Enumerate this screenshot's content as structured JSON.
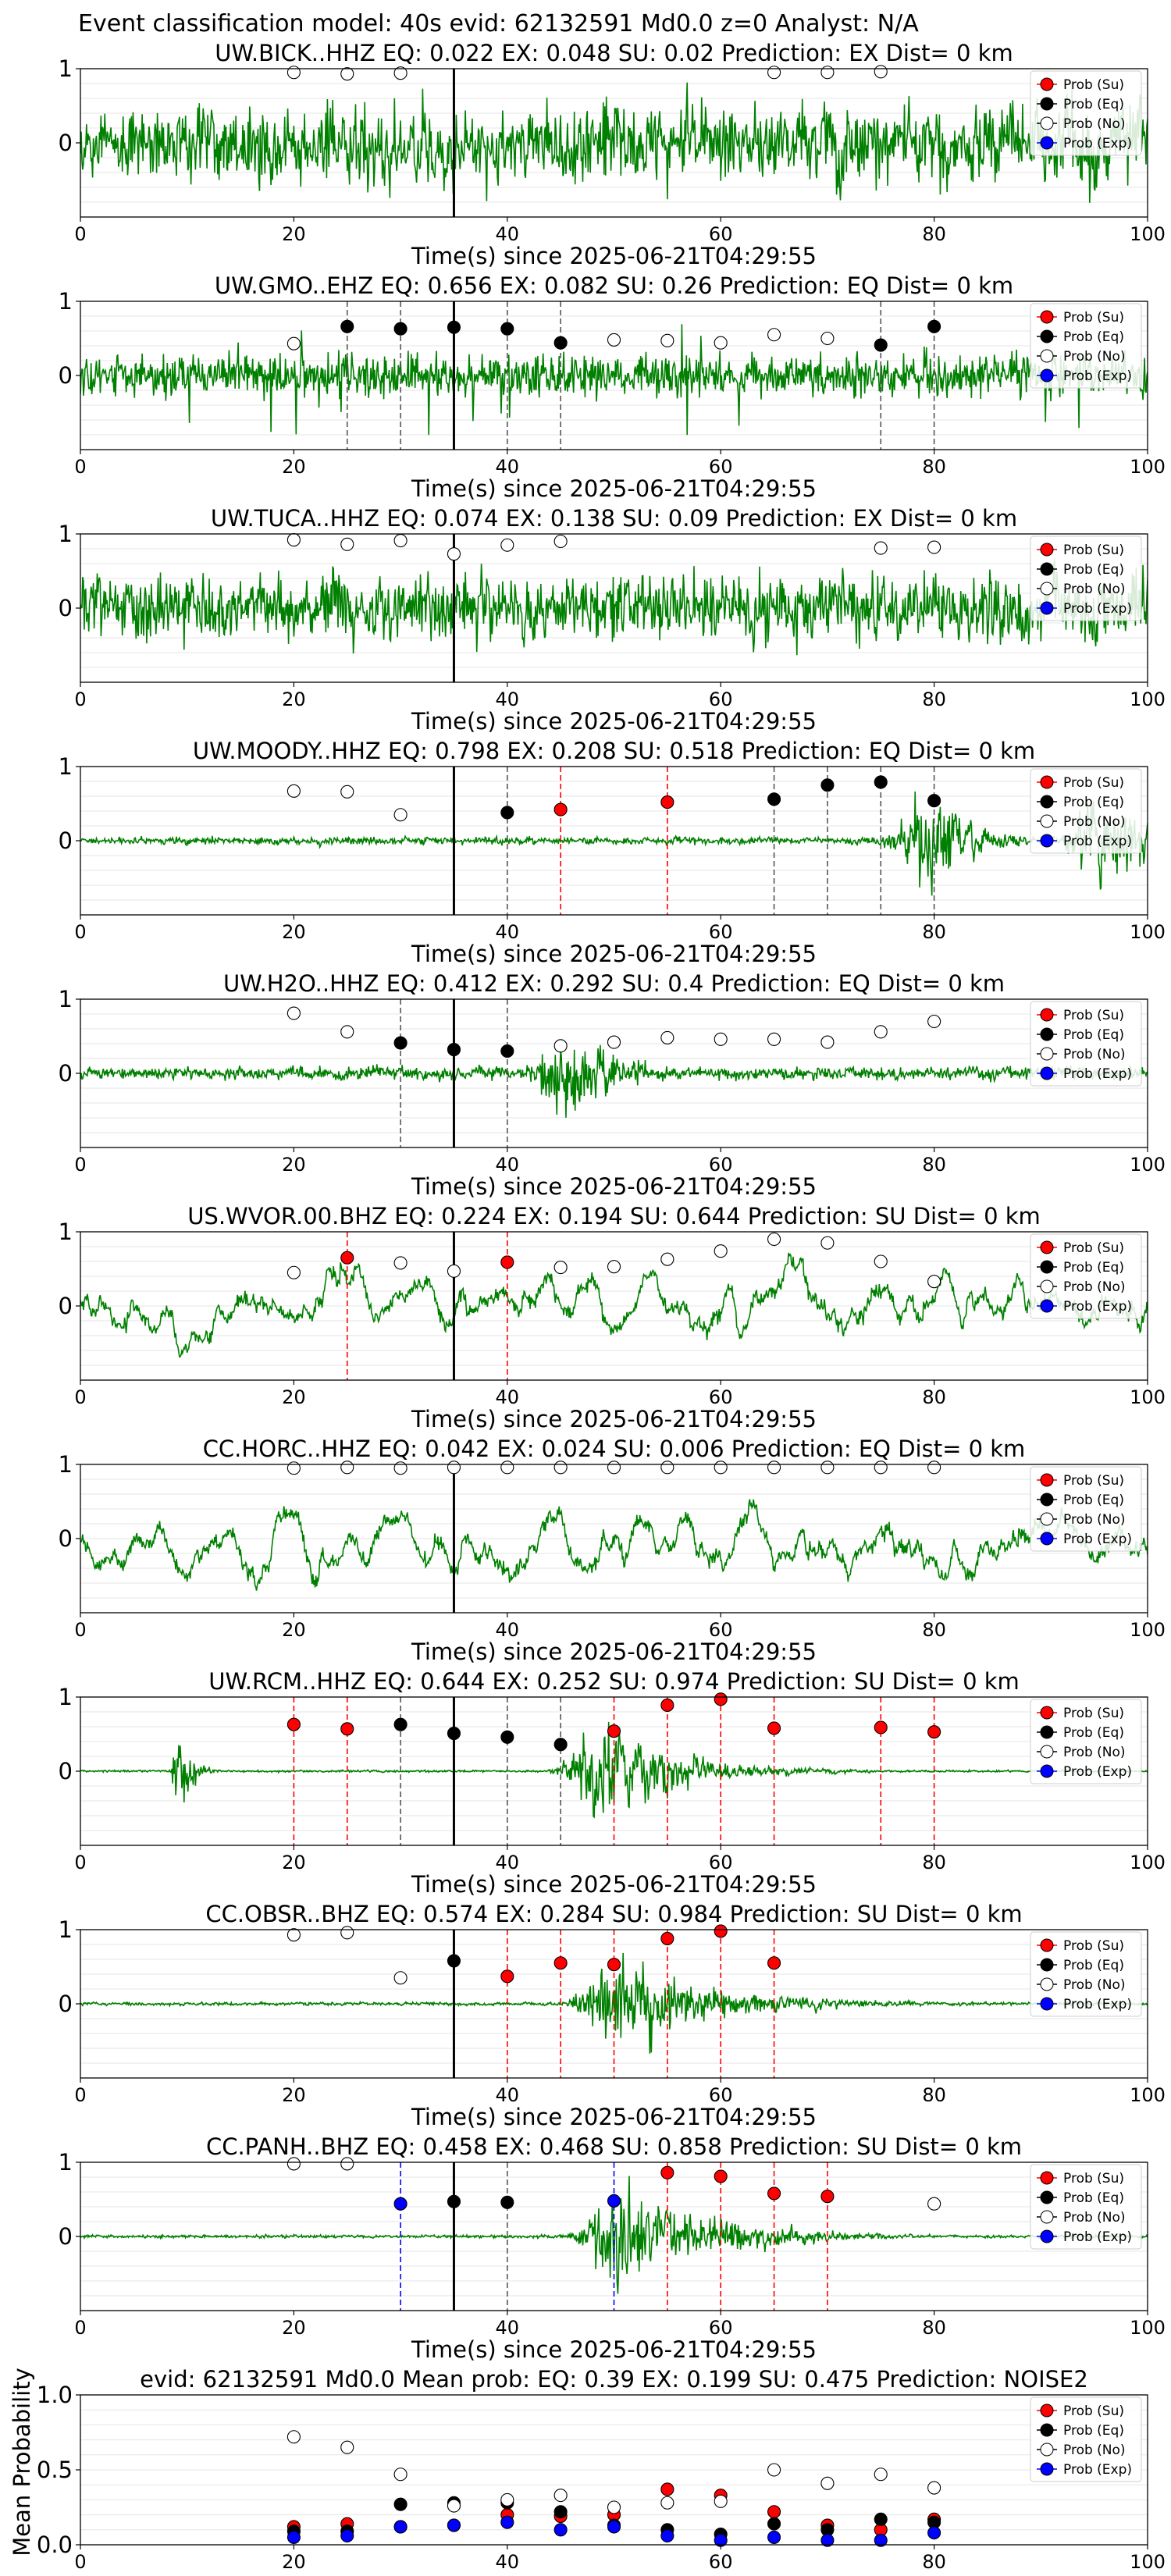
{
  "suptitle": "Event classification model: 40s evid: 62132591 Md0.0 z=0 Analyst: N/A",
  "colors": {
    "waveform": "#008000",
    "su": "#ff0000",
    "eq": "#000000",
    "no": "#ffffff",
    "exp": "#0000ff",
    "su_line": "#ff0000",
    "eq_line": "#555555",
    "exp_line": "#0000ff",
    "origin_line": "#000000",
    "grid": "#e6e6e6"
  },
  "legend_labels": [
    "Prob (Su)",
    "Prob (Eq)",
    "Prob (No)",
    "Prob (Exp)"
  ],
  "chart_data": [
    {
      "type": "line",
      "station": "UW.BICK..HHZ",
      "title": "UW.BICK..HHZ   EQ: 0.022  EX: 0.048  SU: 0.02   Prediction: EX    Dist= 0 km",
      "xlabel": "Time(s) since 2025-06-21T04:29:55",
      "xlim": [
        0,
        100
      ],
      "ylim": [
        -1,
        1
      ],
      "xticks": [
        0,
        20,
        40,
        60,
        80,
        100
      ],
      "yticks": [
        0,
        1
      ],
      "origin_time": 35,
      "legend": "top-right",
      "waveform": {
        "style": "noisy",
        "amp": 0.75,
        "envelope": []
      },
      "probs": [
        {
          "x": 20,
          "y": 0.95,
          "cls": "no"
        },
        {
          "x": 25,
          "y": 0.93,
          "cls": "no"
        },
        {
          "x": 30,
          "y": 0.94,
          "cls": "no"
        },
        {
          "x": 65,
          "y": 0.95,
          "cls": "no"
        },
        {
          "x": 70,
          "y": 0.95,
          "cls": "no"
        },
        {
          "x": 75,
          "y": 0.96,
          "cls": "no"
        }
      ]
    },
    {
      "type": "line",
      "station": "UW.GMO..EHZ",
      "title": "UW.GMO..EHZ   EQ: 0.656  EX: 0.082  SU: 0.26   Prediction: EQ    Dist= 0 km",
      "xlabel": "Time(s) since 2025-06-21T04:29:55",
      "xlim": [
        0,
        100
      ],
      "ylim": [
        -1,
        1
      ],
      "xticks": [
        0,
        20,
        40,
        60,
        80,
        100
      ],
      "yticks": [
        0,
        1
      ],
      "origin_time": 35,
      "legend": "top-right",
      "waveform": {
        "style": "spiky",
        "amp": 0.35,
        "envelope": []
      },
      "probs": [
        {
          "x": 20,
          "y": 0.43,
          "cls": "no"
        },
        {
          "x": 25,
          "y": 0.66,
          "cls": "eq"
        },
        {
          "x": 30,
          "y": 0.63,
          "cls": "eq"
        },
        {
          "x": 35,
          "y": 0.65,
          "cls": "eq"
        },
        {
          "x": 40,
          "y": 0.63,
          "cls": "eq"
        },
        {
          "x": 45,
          "y": 0.44,
          "cls": "eq"
        },
        {
          "x": 50,
          "y": 0.48,
          "cls": "no"
        },
        {
          "x": 55,
          "y": 0.47,
          "cls": "no"
        },
        {
          "x": 60,
          "y": 0.44,
          "cls": "no"
        },
        {
          "x": 65,
          "y": 0.55,
          "cls": "no"
        },
        {
          "x": 70,
          "y": 0.5,
          "cls": "no"
        },
        {
          "x": 75,
          "y": 0.41,
          "cls": "eq"
        },
        {
          "x": 80,
          "y": 0.66,
          "cls": "eq"
        }
      ]
    },
    {
      "type": "line",
      "station": "UW.TUCA..HHZ",
      "title": "UW.TUCA..HHZ   EQ: 0.074  EX: 0.138  SU: 0.09   Prediction: EX    Dist= 0 km",
      "xlabel": "Time(s) since 2025-06-21T04:29:55",
      "xlim": [
        0,
        100
      ],
      "ylim": [
        -1,
        1
      ],
      "xticks": [
        0,
        20,
        40,
        60,
        80,
        100
      ],
      "yticks": [
        0,
        1
      ],
      "origin_time": 35,
      "legend": "top-right",
      "waveform": {
        "style": "noisy",
        "amp": 0.65,
        "envelope": []
      },
      "probs": [
        {
          "x": 20,
          "y": 0.92,
          "cls": "no"
        },
        {
          "x": 25,
          "y": 0.86,
          "cls": "no"
        },
        {
          "x": 30,
          "y": 0.91,
          "cls": "no"
        },
        {
          "x": 35,
          "y": 0.73,
          "cls": "no"
        },
        {
          "x": 40,
          "y": 0.85,
          "cls": "no"
        },
        {
          "x": 45,
          "y": 0.9,
          "cls": "no"
        },
        {
          "x": 75,
          "y": 0.81,
          "cls": "no"
        },
        {
          "x": 80,
          "y": 0.82,
          "cls": "no"
        }
      ]
    },
    {
      "type": "line",
      "station": "UW.MOODY..HHZ",
      "title": "UW.MOODY..HHZ   EQ: 0.798  EX: 0.208  SU: 0.518   Prediction: EQ    Dist= 0 km",
      "xlabel": "Time(s) since 2025-06-21T04:29:55",
      "xlim": [
        0,
        100
      ],
      "ylim": [
        -1,
        1
      ],
      "xticks": [
        0,
        20,
        40,
        60,
        80,
        100
      ],
      "yticks": [
        0,
        1
      ],
      "origin_time": 35,
      "legend": "top-right",
      "waveform": {
        "style": "quiet",
        "amp": 0.07,
        "envelope": [
          [
            80,
            5,
            3.5
          ],
          [
            96,
            4,
            7
          ]
        ]
      },
      "probs": [
        {
          "x": 20,
          "y": 0.67,
          "cls": "no"
        },
        {
          "x": 25,
          "y": 0.66,
          "cls": "no"
        },
        {
          "x": 30,
          "y": 0.35,
          "cls": "no"
        },
        {
          "x": 40,
          "y": 0.38,
          "cls": "eq"
        },
        {
          "x": 45,
          "y": 0.42,
          "cls": "su"
        },
        {
          "x": 55,
          "y": 0.52,
          "cls": "su"
        },
        {
          "x": 65,
          "y": 0.56,
          "cls": "eq"
        },
        {
          "x": 70,
          "y": 0.75,
          "cls": "eq"
        },
        {
          "x": 75,
          "y": 0.79,
          "cls": "eq"
        },
        {
          "x": 80,
          "y": 0.54,
          "cls": "eq"
        }
      ]
    },
    {
      "type": "line",
      "station": "UW.H2O..HHZ",
      "title": "UW.H2O..HHZ   EQ: 0.412  EX: 0.292  SU: 0.4   Prediction: EQ    Dist= 0 km",
      "xlabel": "Time(s) since 2025-06-21T04:29:55",
      "xlim": [
        0,
        100
      ],
      "ylim": [
        -1,
        1
      ],
      "xticks": [
        0,
        20,
        40,
        60,
        80,
        100
      ],
      "yticks": [
        0,
        1
      ],
      "origin_time": 35,
      "legend": "top-right",
      "waveform": {
        "style": "quiet",
        "amp": 0.12,
        "envelope": [
          [
            45,
            3,
            5
          ]
        ]
      },
      "probs": [
        {
          "x": 20,
          "y": 0.81,
          "cls": "no"
        },
        {
          "x": 25,
          "y": 0.56,
          "cls": "no"
        },
        {
          "x": 30,
          "y": 0.41,
          "cls": "eq"
        },
        {
          "x": 35,
          "y": 0.32,
          "cls": "eq"
        },
        {
          "x": 40,
          "y": 0.3,
          "cls": "eq"
        },
        {
          "x": 45,
          "y": 0.37,
          "cls": "no"
        },
        {
          "x": 50,
          "y": 0.42,
          "cls": "no"
        },
        {
          "x": 55,
          "y": 0.48,
          "cls": "no"
        },
        {
          "x": 60,
          "y": 0.46,
          "cls": "no"
        },
        {
          "x": 65,
          "y": 0.46,
          "cls": "no"
        },
        {
          "x": 70,
          "y": 0.42,
          "cls": "no"
        },
        {
          "x": 75,
          "y": 0.56,
          "cls": "no"
        },
        {
          "x": 80,
          "y": 0.7,
          "cls": "no"
        }
      ]
    },
    {
      "type": "line",
      "station": "US.WVOR.00.BHZ",
      "title": "US.WVOR.00.BHZ   EQ: 0.224  EX: 0.194  SU: 0.644   Prediction: SU    Dist= 0 km",
      "xlabel": "Time(s) since 2025-06-21T04:29:55",
      "xlim": [
        0,
        100
      ],
      "ylim": [
        -1,
        1
      ],
      "xticks": [
        0,
        20,
        40,
        60,
        80,
        100
      ],
      "yticks": [
        0,
        1
      ],
      "origin_time": 35,
      "legend": "top-right",
      "waveform": {
        "style": "wavy",
        "amp": 0.6,
        "envelope": []
      },
      "probs": [
        {
          "x": 20,
          "y": 0.45,
          "cls": "no"
        },
        {
          "x": 25,
          "y": 0.65,
          "cls": "su"
        },
        {
          "x": 30,
          "y": 0.58,
          "cls": "no"
        },
        {
          "x": 35,
          "y": 0.47,
          "cls": "no"
        },
        {
          "x": 40,
          "y": 0.59,
          "cls": "su"
        },
        {
          "x": 45,
          "y": 0.52,
          "cls": "no"
        },
        {
          "x": 50,
          "y": 0.53,
          "cls": "no"
        },
        {
          "x": 55,
          "y": 0.63,
          "cls": "no"
        },
        {
          "x": 60,
          "y": 0.74,
          "cls": "no"
        },
        {
          "x": 65,
          "y": 0.9,
          "cls": "no"
        },
        {
          "x": 70,
          "y": 0.85,
          "cls": "no"
        },
        {
          "x": 75,
          "y": 0.6,
          "cls": "no"
        },
        {
          "x": 80,
          "y": 0.33,
          "cls": "no"
        }
      ]
    },
    {
      "type": "line",
      "station": "CC.HORC..HHZ",
      "title": "CC.HORC..HHZ   EQ: 0.042  EX: 0.024  SU: 0.006   Prediction: EQ    Dist= 0 km",
      "xlabel": "Time(s) since 2025-06-21T04:29:55",
      "xlim": [
        0,
        100
      ],
      "ylim": [
        -1,
        1
      ],
      "xticks": [
        0,
        20,
        40,
        60,
        80,
        100
      ],
      "yticks": [
        0,
        1
      ],
      "origin_time": 35,
      "legend": "top-right",
      "waveform": {
        "style": "wavy",
        "amp": 0.6,
        "envelope": []
      },
      "probs": [
        {
          "x": 20,
          "y": 0.95,
          "cls": "no"
        },
        {
          "x": 25,
          "y": 0.96,
          "cls": "no"
        },
        {
          "x": 30,
          "y": 0.95,
          "cls": "no"
        },
        {
          "x": 35,
          "y": 0.96,
          "cls": "no"
        },
        {
          "x": 40,
          "y": 0.96,
          "cls": "no"
        },
        {
          "x": 45,
          "y": 0.96,
          "cls": "no"
        },
        {
          "x": 50,
          "y": 0.96,
          "cls": "no"
        },
        {
          "x": 55,
          "y": 0.96,
          "cls": "no"
        },
        {
          "x": 60,
          "y": 0.96,
          "cls": "no"
        },
        {
          "x": 65,
          "y": 0.96,
          "cls": "no"
        },
        {
          "x": 70,
          "y": 0.96,
          "cls": "no"
        },
        {
          "x": 75,
          "y": 0.96,
          "cls": "no"
        },
        {
          "x": 80,
          "y": 0.96,
          "cls": "no"
        }
      ]
    },
    {
      "type": "line",
      "station": "UW.RCM..HHZ",
      "title": "UW.RCM..HHZ   EQ: 0.644  EX: 0.252  SU: 0.974   Prediction: SU    Dist= 0 km",
      "xlabel": "Time(s) since 2025-06-21T04:29:55",
      "xlim": [
        0,
        100
      ],
      "ylim": [
        -1,
        1
      ],
      "xticks": [
        0,
        20,
        40,
        60,
        80,
        100
      ],
      "yticks": [
        0,
        1
      ],
      "origin_time": 35,
      "legend": "top-right",
      "waveform": {
        "style": "quiet",
        "amp": 0.02,
        "envelope": [
          [
            49,
            4,
            7
          ],
          [
            9,
            0.5,
            1.2
          ]
        ]
      },
      "probs": [
        {
          "x": 20,
          "y": 0.63,
          "cls": "su"
        },
        {
          "x": 25,
          "y": 0.57,
          "cls": "su"
        },
        {
          "x": 30,
          "y": 0.63,
          "cls": "eq"
        },
        {
          "x": 35,
          "y": 0.51,
          "cls": "eq"
        },
        {
          "x": 40,
          "y": 0.46,
          "cls": "eq"
        },
        {
          "x": 45,
          "y": 0.36,
          "cls": "eq"
        },
        {
          "x": 50,
          "y": 0.54,
          "cls": "su"
        },
        {
          "x": 55,
          "y": 0.89,
          "cls": "su"
        },
        {
          "x": 60,
          "y": 0.97,
          "cls": "su"
        },
        {
          "x": 65,
          "y": 0.58,
          "cls": "su"
        },
        {
          "x": 75,
          "y": 0.59,
          "cls": "su"
        },
        {
          "x": 80,
          "y": 0.53,
          "cls": "su"
        }
      ]
    },
    {
      "type": "line",
      "station": "CC.OBSR..BHZ",
      "title": "CC.OBSR..BHZ   EQ: 0.574  EX: 0.284  SU: 0.984   Prediction: SU    Dist= 0 km",
      "xlabel": "Time(s) since 2025-06-21T04:29:55",
      "xlim": [
        0,
        100
      ],
      "ylim": [
        -1,
        1
      ],
      "xticks": [
        0,
        20,
        40,
        60,
        80,
        100
      ],
      "yticks": [
        0,
        1
      ],
      "origin_time": 35,
      "legend": "top-right",
      "waveform": {
        "style": "quiet",
        "amp": 0.03,
        "envelope": [
          [
            50,
            4,
            9
          ]
        ]
      },
      "probs": [
        {
          "x": 20,
          "y": 0.93,
          "cls": "no"
        },
        {
          "x": 25,
          "y": 0.96,
          "cls": "no"
        },
        {
          "x": 30,
          "y": 0.35,
          "cls": "no"
        },
        {
          "x": 35,
          "y": 0.58,
          "cls": "eq"
        },
        {
          "x": 40,
          "y": 0.37,
          "cls": "su"
        },
        {
          "x": 45,
          "y": 0.55,
          "cls": "su"
        },
        {
          "x": 50,
          "y": 0.53,
          "cls": "su"
        },
        {
          "x": 55,
          "y": 0.88,
          "cls": "su"
        },
        {
          "x": 60,
          "y": 0.98,
          "cls": "su"
        },
        {
          "x": 65,
          "y": 0.55,
          "cls": "su"
        }
      ]
    },
    {
      "type": "line",
      "station": "CC.PANH..BHZ",
      "title": "CC.PANH..BHZ   EQ: 0.458  EX: 0.468  SU: 0.858   Prediction: SU    Dist= 0 km",
      "xlabel": "Time(s) since 2025-06-21T04:29:55",
      "xlim": [
        0,
        100
      ],
      "ylim": [
        -1,
        1
      ],
      "xticks": [
        0,
        20,
        40,
        60,
        80,
        100
      ],
      "yticks": [
        0,
        1
      ],
      "origin_time": 35,
      "legend": "top-right",
      "waveform": {
        "style": "quiet",
        "amp": 0.03,
        "envelope": [
          [
            50,
            3.5,
            9
          ]
        ]
      },
      "probs": [
        {
          "x": 20,
          "y": 0.98,
          "cls": "no"
        },
        {
          "x": 25,
          "y": 0.98,
          "cls": "no"
        },
        {
          "x": 30,
          "y": 0.44,
          "cls": "exp"
        },
        {
          "x": 35,
          "y": 0.47,
          "cls": "eq"
        },
        {
          "x": 40,
          "y": 0.46,
          "cls": "eq"
        },
        {
          "x": 50,
          "y": 0.48,
          "cls": "exp"
        },
        {
          "x": 55,
          "y": 0.86,
          "cls": "su"
        },
        {
          "x": 60,
          "y": 0.81,
          "cls": "su"
        },
        {
          "x": 65,
          "y": 0.58,
          "cls": "su"
        },
        {
          "x": 70,
          "y": 0.54,
          "cls": "su"
        },
        {
          "x": 80,
          "y": 0.44,
          "cls": "no"
        }
      ]
    },
    {
      "type": "scatter",
      "title": "evid: 62132591   Md0.0   Mean prob:   EQ: 0.39  EX: 0.199  SU: 0.475   Prediction: NOISE2",
      "xlabel": "",
      "ylabel": "Mean Probability",
      "xlim": [
        0,
        100
      ],
      "ylim": [
        0,
        1
      ],
      "xticks": [
        0,
        20,
        40,
        60,
        80,
        100
      ],
      "yticks": [
        0.0,
        0.5,
        1.0
      ],
      "ytick_labels": [
        "0.0",
        "0.5",
        "1.0"
      ],
      "legend": "top-right",
      "x": [
        20,
        25,
        30,
        35,
        40,
        45,
        50,
        55,
        60,
        65,
        70,
        75,
        80
      ],
      "series": [
        {
          "name": "Prob (Su)",
          "cls": "su",
          "values": [
            0.12,
            0.14,
            0.12,
            0.13,
            0.2,
            0.19,
            0.2,
            0.37,
            0.33,
            0.22,
            0.13,
            0.1,
            0.17
          ]
        },
        {
          "name": "Prob (Eq)",
          "cls": "eq",
          "values": [
            0.09,
            0.09,
            0.27,
            0.28,
            0.28,
            0.22,
            0.13,
            0.1,
            0.07,
            0.14,
            0.1,
            0.17,
            0.15
          ]
        },
        {
          "name": "Prob (No)",
          "cls": "no",
          "values": [
            0.72,
            0.65,
            0.47,
            0.26,
            0.3,
            0.33,
            0.25,
            0.28,
            0.29,
            0.5,
            0.41,
            0.47,
            0.38
          ]
        },
        {
          "name": "Prob (Exp)",
          "cls": "exp",
          "values": [
            0.05,
            0.06,
            0.12,
            0.13,
            0.15,
            0.1,
            0.12,
            0.06,
            0.03,
            0.05,
            0.03,
            0.03,
            0.08
          ]
        }
      ]
    }
  ]
}
